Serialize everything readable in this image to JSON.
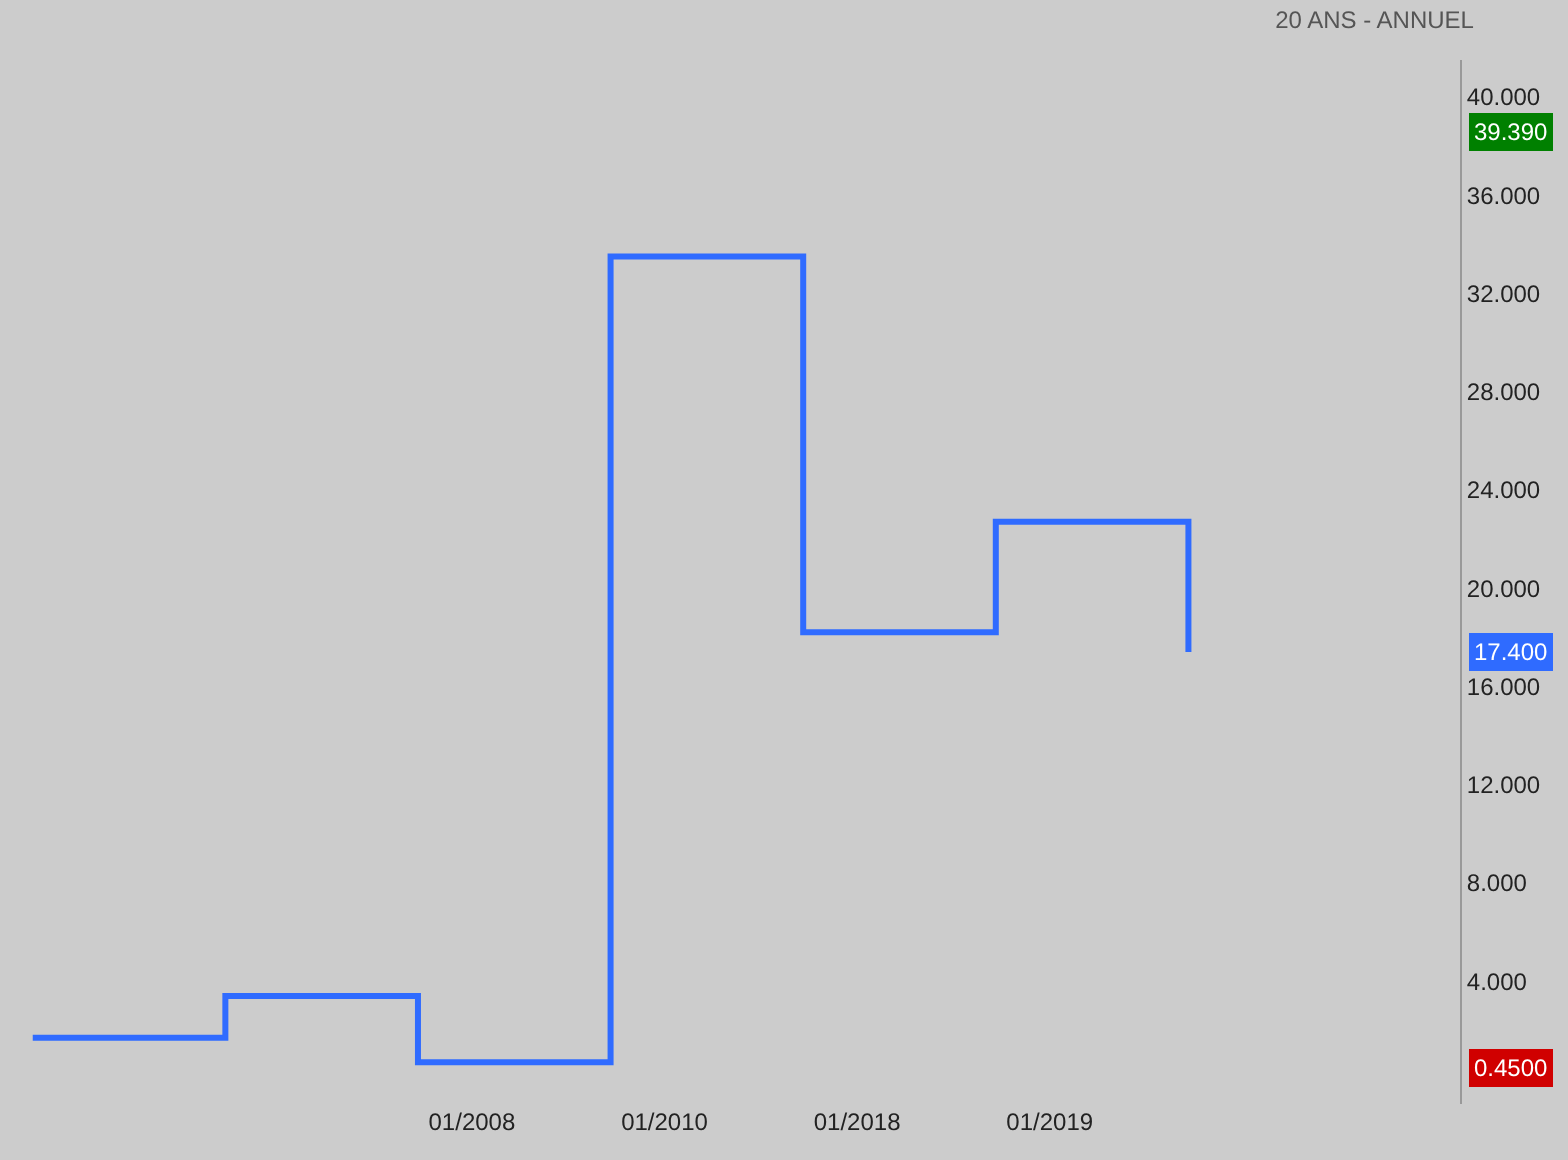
{
  "chart_data": {
    "type": "step",
    "title": "20 ANS - ANNUEL",
    "categories": [
      null,
      null,
      "01/2008",
      "01/2010",
      "01/2018",
      "01/2019",
      null
    ],
    "series": [
      {
        "color": "#2f6bff",
        "values": [
          1.7,
          3.4,
          0.7,
          33.5,
          18.2,
          22.7,
          17.4
        ]
      }
    ],
    "ylim": [
      -1,
      41.5
    ],
    "yticks": [
      {
        "value": 4,
        "label": "4.000"
      },
      {
        "value": 8,
        "label": "8.000"
      },
      {
        "value": 12,
        "label": "12.000"
      },
      {
        "value": 16,
        "label": "16.000"
      },
      {
        "value": 20,
        "label": "20.000"
      },
      {
        "value": 24,
        "label": "24.000"
      },
      {
        "value": 28,
        "label": "28.000"
      },
      {
        "value": 32,
        "label": "32.000"
      },
      {
        "value": 36,
        "label": "36.000"
      },
      {
        "value": 40,
        "label": "40.000"
      }
    ],
    "annotations": [
      "39.390",
      "17.400",
      "0.4500"
    ],
    "grid": false
  }
}
